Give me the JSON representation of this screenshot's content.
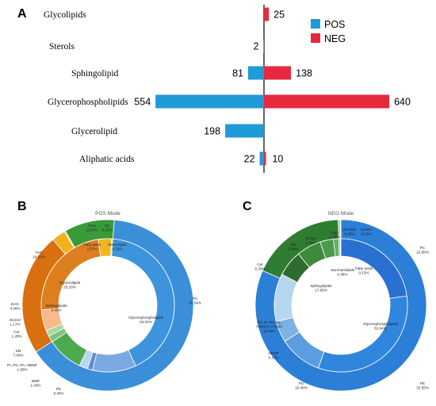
{
  "chart_data": [
    {
      "type": "bar",
      "panel": "A",
      "categories": [
        "Glycolipids",
        "Sterols",
        "Sphingolipid",
        "Glycerophospholipids",
        "Glycerolipid",
        "Aliphatic acids"
      ],
      "series": [
        {
          "name": "POS",
          "color": "#1f9bd7",
          "values": [
            0,
            2,
            81,
            554,
            198,
            22
          ],
          "labels": [
            "",
            "2",
            "81",
            "554",
            "198",
            "22"
          ]
        },
        {
          "name": "NEG",
          "color": "#e6293f",
          "values": [
            25,
            0,
            138,
            640,
            0,
            10
          ],
          "labels": [
            "25",
            "",
            "138",
            "640",
            "",
            ""
          ]
        }
      ],
      "orientation": "horizontal-diverging",
      "legend": "top-right"
    },
    {
      "type": "pie",
      "panel": "B",
      "title": "POS Mode",
      "outer": [
        {
          "name": "Glycerophospholipids",
          "pct": "64.64%",
          "value": 64.64,
          "color": "#3a8fd8"
        },
        {
          "name": "Glycerolipids",
          "pct": "23.10%",
          "value": 23.1,
          "color": "#d8700f"
        },
        {
          "name": "Fatty acids",
          "pct": "2.57%",
          "value": 2.57,
          "color": "#efb21a"
        },
        {
          "name": "Sterol lipids",
          "pct": "0.23%",
          "value": 0.23,
          "color": "#f6d44a"
        },
        {
          "name": "Sphingolipids",
          "pct": "9.45%",
          "value": 9.45,
          "color": "#3a9a3a"
        }
      ],
      "inner": [
        {
          "name": "PC",
          "pct": "33.54%",
          "value": 33.54,
          "color": "#3e94dc"
        },
        {
          "name": "PE",
          "pct": "8.40%",
          "value": 8.4,
          "color": "#7aa8e0"
        },
        {
          "name": "BMP",
          "pct": "1.03%",
          "value": 1.03,
          "color": "#5f8fd0"
        },
        {
          "name": "PI, PG, PA, HBMP",
          "pct": "1.65%",
          "value": 1.65,
          "color": "#b7d7ef"
        },
        {
          "name": "SM",
          "pct": "7.00%",
          "value": 7.0,
          "color": "#4eaa4e"
        },
        {
          "name": "Cer",
          "pct": "1.28%",
          "value": 1.28,
          "color": "#7cc47a"
        },
        {
          "name": "GlcCer",
          "pct": "1.17%",
          "value": 1.17,
          "color": "#a8d9a2"
        },
        {
          "name": "DAG",
          "pct": "4.08%",
          "value": 4.08,
          "color": "#f7b98a"
        },
        {
          "name": "TAG",
          "pct": "19.02%",
          "value": 19.02,
          "color": "#de7f1f"
        },
        {
          "name": "ACar",
          "pct": "2.57%",
          "value": 2.57,
          "color": "#f0b621"
        },
        {
          "name": "CE",
          "pct": "0.23%",
          "value": 0.23,
          "color": "#f7dc62"
        }
      ]
    },
    {
      "type": "pie",
      "panel": "C",
      "title": "NEG Mode",
      "outer": [
        {
          "name": "Glycerophospholipids",
          "pct": "81.64%",
          "value": 81.64,
          "color": "#2b7fd6"
        },
        {
          "name": "Sphingolipids",
          "pct": "17.85%",
          "value": 17.85,
          "color": "#2f7d32"
        },
        {
          "name": "Saccharolipids",
          "pct": "0.38%",
          "value": 0.38,
          "color": "#9ccd6a"
        },
        {
          "name": "Fatty acids",
          "pct": "0.13%",
          "value": 0.13,
          "color": "#c8e29a"
        }
      ],
      "inner": [
        {
          "name": "PC",
          "pct": "22.65%",
          "value": 22.65,
          "color": "#2a6fd2"
        },
        {
          "name": "PE",
          "pct": "32.55%",
          "value": 32.55,
          "color": "#2f86dc"
        },
        {
          "name": "PG",
          "pct": "10.36%",
          "value": 10.36,
          "color": "#5c9ddf"
        },
        {
          "name": "HBMP",
          "pct": "5.12%",
          "value": 5.12,
          "color": "#7eb2e4"
        },
        {
          "name": "PS, PI, PA, CL, PMeOH, PEtOH",
          "pct": "11.58%",
          "value": 11.58,
          "color": "#b5d6ee"
        },
        {
          "name": "Cer",
          "pct": "6.25%",
          "value": 6.25,
          "color": "#2e6b2e"
        },
        {
          "name": "SM",
          "pct": "5.96%",
          "value": 5.96,
          "color": "#3d8a3d"
        },
        {
          "name": "GlcCer",
          "pct": "3.20%",
          "value": 3.2,
          "color": "#4a9a4a"
        },
        {
          "name": "GM3",
          "pct": "1.28%",
          "value": 1.28,
          "color": "#62b062"
        },
        {
          "name": "GlcADG",
          "pct": "0.38%",
          "value": 0.38,
          "color": "#9ccd6a"
        },
        {
          "name": "FAHFA",
          "pct": "0.13%",
          "value": 0.13,
          "color": "#c8e29a"
        }
      ]
    }
  ]
}
